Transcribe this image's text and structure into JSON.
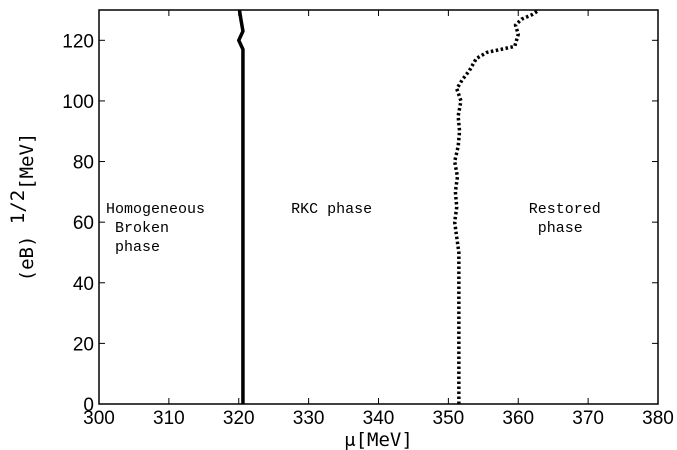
{
  "chart_data": {
    "type": "line",
    "title": "",
    "xlabel": "μ[MeV]",
    "ylabel_base": "(eB)",
    "ylabel_exp": "1/2",
    "ylabel_unit": "[MeV]",
    "xlim": [
      300,
      380
    ],
    "ylim": [
      0,
      130
    ],
    "xticks": [
      300,
      310,
      320,
      330,
      340,
      350,
      360,
      370,
      380
    ],
    "yticks": [
      0,
      20,
      40,
      60,
      80,
      100,
      120
    ],
    "grid": false,
    "legend": "none",
    "series": [
      {
        "style": "solid",
        "color": "#000000",
        "points": [
          [
            320.6,
            0
          ],
          [
            320.6,
            20
          ],
          [
            320.6,
            40
          ],
          [
            320.6,
            60
          ],
          [
            320.6,
            80
          ],
          [
            320.6,
            100
          ],
          [
            320.6,
            117
          ],
          [
            320.0,
            120
          ],
          [
            320.6,
            123
          ],
          [
            320.3,
            127
          ],
          [
            320.1,
            130
          ]
        ]
      },
      {
        "style": "dotted",
        "color": "#000000",
        "points": [
          [
            351.5,
            0
          ],
          [
            351.5,
            20
          ],
          [
            351.5,
            40
          ],
          [
            351.5,
            50
          ],
          [
            351.2,
            55
          ],
          [
            350.9,
            60
          ],
          [
            351.2,
            65
          ],
          [
            351.0,
            70
          ],
          [
            351.3,
            75
          ],
          [
            350.9,
            80
          ],
          [
            351.4,
            85
          ],
          [
            351.6,
            90
          ],
          [
            351.4,
            95
          ],
          [
            351.8,
            100
          ],
          [
            351.2,
            104
          ],
          [
            352.0,
            107
          ],
          [
            353.0,
            110
          ],
          [
            354.0,
            114
          ],
          [
            355.5,
            116
          ],
          [
            357.5,
            117
          ],
          [
            359.5,
            118
          ],
          [
            360.0,
            122
          ],
          [
            359.6,
            125
          ],
          [
            360.5,
            127
          ],
          [
            362.0,
            128.5
          ],
          [
            363.0,
            130
          ]
        ]
      }
    ],
    "annotations": [
      {
        "lines": [
          "Homogeneous",
          " Broken",
          " phase"
        ],
        "x": 301,
        "y": 63
      },
      {
        "lines": [
          "RKC phase"
        ],
        "x": 327.5,
        "y": 63
      },
      {
        "lines": [
          "Restored",
          " phase"
        ],
        "x": 361.5,
        "y": 63
      }
    ]
  }
}
